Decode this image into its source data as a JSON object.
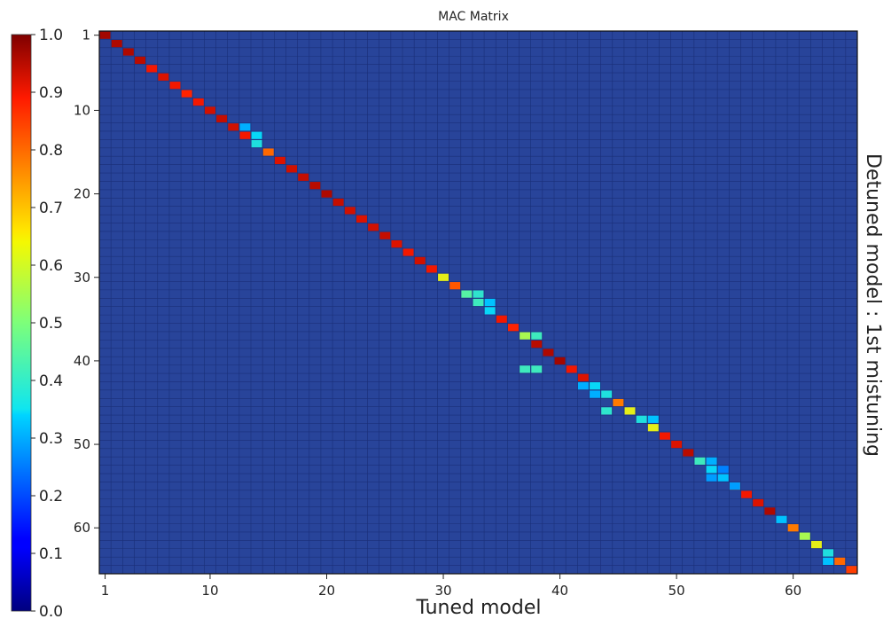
{
  "chart_data": {
    "type": "heatmap",
    "title": "MAC Matrix",
    "xlabel": "Tuned model",
    "ylabel": "Detuned model : 1st mistuning",
    "size": 65,
    "xlim": [
      1,
      65
    ],
    "ylim": [
      1,
      65
    ],
    "x_ticks": [
      1,
      10,
      20,
      30,
      40,
      50,
      60
    ],
    "y_ticks": [
      1,
      10,
      20,
      30,
      40,
      50,
      60
    ],
    "colorbar": {
      "range": [
        0.0,
        1.0
      ],
      "ticks": [
        "0.0",
        "0.1",
        "0.2",
        "0.3",
        "0.4",
        "0.5",
        "0.6",
        "0.7",
        "0.8",
        "0.9",
        "1.0"
      ],
      "colormap": "jet"
    },
    "background_value": 0.1,
    "diagonal": [
      {
        "i": 1,
        "v": 0.97
      },
      {
        "i": 2,
        "v": 0.96
      },
      {
        "i": 3,
        "v": 0.96
      },
      {
        "i": 4,
        "v": 0.95
      },
      {
        "i": 5,
        "v": 0.9
      },
      {
        "i": 6,
        "v": 0.92
      },
      {
        "i": 7,
        "v": 0.9
      },
      {
        "i": 8,
        "v": 0.88
      },
      {
        "i": 9,
        "v": 0.9
      },
      {
        "i": 10,
        "v": 0.93
      },
      {
        "i": 11,
        "v": 0.94
      },
      {
        "i": 12,
        "v": 0.93
      },
      {
        "i": 13,
        "v": 0.9
      },
      {
        "i": 14,
        "v": 0.38
      },
      {
        "i": 15,
        "v": 0.8
      },
      {
        "i": 16,
        "v": 0.92
      },
      {
        "i": 17,
        "v": 0.93
      },
      {
        "i": 18,
        "v": 0.94
      },
      {
        "i": 19,
        "v": 0.95
      },
      {
        "i": 20,
        "v": 0.96
      },
      {
        "i": 21,
        "v": 0.94
      },
      {
        "i": 22,
        "v": 0.93
      },
      {
        "i": 23,
        "v": 0.92
      },
      {
        "i": 24,
        "v": 0.93
      },
      {
        "i": 25,
        "v": 0.94
      },
      {
        "i": 26,
        "v": 0.92
      },
      {
        "i": 27,
        "v": 0.9
      },
      {
        "i": 28,
        "v": 0.93
      },
      {
        "i": 29,
        "v": 0.9
      },
      {
        "i": 30,
        "v": 0.62
      },
      {
        "i": 31,
        "v": 0.82
      },
      {
        "i": 32,
        "v": 0.45
      },
      {
        "i": 33,
        "v": 0.42
      },
      {
        "i": 34,
        "v": 0.35
      },
      {
        "i": 35,
        "v": 0.9
      },
      {
        "i": 36,
        "v": 0.88
      },
      {
        "i": 37,
        "v": 0.55
      },
      {
        "i": 38,
        "v": 0.95
      },
      {
        "i": 39,
        "v": 0.96
      },
      {
        "i": 40,
        "v": 0.97
      },
      {
        "i": 41,
        "v": 0.9
      },
      {
        "i": 42,
        "v": 0.92
      },
      {
        "i": 43,
        "v": 0.35
      },
      {
        "i": 44,
        "v": 0.38
      },
      {
        "i": 45,
        "v": 0.78
      },
      {
        "i": 46,
        "v": 0.62
      },
      {
        "i": 47,
        "v": 0.38
      },
      {
        "i": 48,
        "v": 0.62
      },
      {
        "i": 49,
        "v": 0.9
      },
      {
        "i": 50,
        "v": 0.92
      },
      {
        "i": 51,
        "v": 0.95
      },
      {
        "i": 52,
        "v": 0.42
      },
      {
        "i": 53,
        "v": 0.35
      },
      {
        "i": 54,
        "v": 0.32
      },
      {
        "i": 55,
        "v": 0.78
      },
      {
        "i": 56,
        "v": 0.9
      },
      {
        "i": 57,
        "v": 0.92
      },
      {
        "i": 58,
        "v": 0.96
      },
      {
        "i": 59,
        "v": 0.32
      },
      {
        "i": 60,
        "v": 0.78
      },
      {
        "i": 61,
        "v": 0.55
      },
      {
        "i": 62,
        "v": 0.62
      },
      {
        "i": 63,
        "v": 0.38
      },
      {
        "i": 64,
        "v": 0.8
      },
      {
        "i": 65,
        "v": 0.85
      }
    ],
    "off_diagonal": [
      {
        "x": 13,
        "y": 12,
        "v": 0.3
      },
      {
        "x": 14,
        "y": 13,
        "v": 0.35
      },
      {
        "x": 33,
        "y": 32,
        "v": 0.4
      },
      {
        "x": 34,
        "y": 33,
        "v": 0.32
      },
      {
        "x": 38,
        "y": 37,
        "v": 0.42
      },
      {
        "x": 37,
        "y": 41,
        "v": 0.42
      },
      {
        "x": 38,
        "y": 41,
        "v": 0.42
      },
      {
        "x": 42,
        "y": 43,
        "v": 0.3
      },
      {
        "x": 43,
        "y": 44,
        "v": 0.3
      },
      {
        "x": 44,
        "y": 46,
        "v": 0.4
      },
      {
        "x": 48,
        "y": 47,
        "v": 0.32
      },
      {
        "x": 53,
        "y": 52,
        "v": 0.3
      },
      {
        "x": 54,
        "y": 53,
        "v": 0.25
      },
      {
        "x": 53,
        "y": 54,
        "v": 0.28
      },
      {
        "x": 55,
        "y": 55,
        "v": 0.28
      },
      {
        "x": 63,
        "y": 64,
        "v": 0.32
      }
    ]
  }
}
